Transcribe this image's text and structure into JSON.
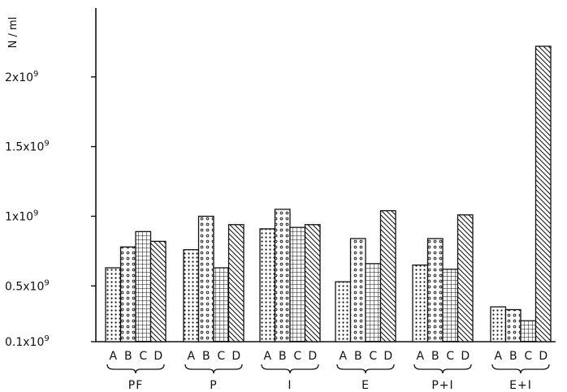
{
  "chart_data": {
    "type": "bar",
    "ylabel": "N / ml",
    "yticks": [
      {
        "value": 100000000.0,
        "label": "0.1x10",
        "exp": "9"
      },
      {
        "value": 500000000.0,
        "label": "0.5x10",
        "exp": "9"
      },
      {
        "value": 1000000000.0,
        "label": "1x10",
        "exp": "9"
      },
      {
        "value": 1500000000.0,
        "label": "1.5x10",
        "exp": "9"
      },
      {
        "value": 2000000000.0,
        "label": "2x10",
        "exp": "9"
      }
    ],
    "ylim": [
      100000000.0,
      2300000000.0
    ],
    "bar_letters": [
      "A",
      "B",
      "C",
      "D"
    ],
    "groups": [
      {
        "label": "PF",
        "values": [
          630000000.0,
          780000000.0,
          890000000.0,
          820000000.0
        ]
      },
      {
        "label": "P",
        "values": [
          760000000.0,
          1000000000.0,
          630000000.0,
          940000000.0
        ]
      },
      {
        "label": "I",
        "values": [
          910000000.0,
          1050000000.0,
          920000000.0,
          940000000.0
        ]
      },
      {
        "label": "E",
        "values": [
          530000000.0,
          840000000.0,
          660000000.0,
          1040000000.0
        ]
      },
      {
        "label": "P+I",
        "values": [
          650000000.0,
          840000000.0,
          620000000.0,
          1010000000.0
        ]
      },
      {
        "label": "E+I",
        "values": [
          350000000.0,
          330000000.0,
          250000000.0,
          2220000000.0
        ]
      }
    ],
    "grid": false,
    "legend": "none"
  }
}
